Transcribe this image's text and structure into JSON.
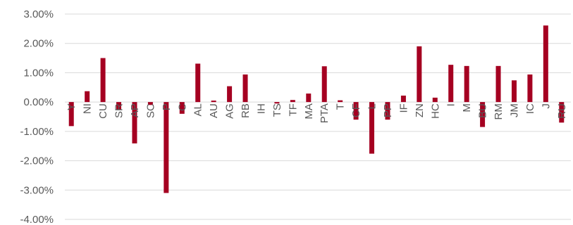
{
  "chart_data": {
    "type": "bar",
    "categories": [
      "Y",
      "NI",
      "CU",
      "SR",
      "AP",
      "SC",
      "P",
      "C",
      "AL",
      "AU",
      "AG",
      "RB",
      "IH",
      "TS",
      "TF",
      "MA",
      "PTA",
      "T",
      "CF",
      "L",
      "PP",
      "IF",
      "ZN",
      "HC",
      "I",
      "M",
      "BU",
      "RM",
      "JM",
      "IC",
      "J",
      "RU"
    ],
    "values": [
      -0.0082,
      0.0037,
      0.015,
      -0.0025,
      -0.0141,
      -0.001,
      -0.031,
      -0.004,
      0.0131,
      0.0005,
      0.0054,
      0.0094,
      0.0,
      -0.0005,
      0.0007,
      0.0029,
      0.0122,
      0.0006,
      -0.006,
      -0.0176,
      -0.006,
      0.0022,
      0.019,
      0.0015,
      0.0127,
      0.0123,
      -0.0085,
      0.0123,
      0.0074,
      0.0094,
      0.0261,
      -0.007
    ],
    "ylim": [
      -0.04,
      0.03
    ],
    "yticks": [
      "3.00%",
      "2.00%",
      "1.00%",
      "0.00%",
      "-1.00%",
      "-2.00%",
      "-3.00%",
      "-4.00%"
    ],
    "ytick_values": [
      0.03,
      0.02,
      0.01,
      0.0,
      -0.01,
      -0.02,
      -0.03,
      -0.04
    ],
    "grid": true,
    "bar_color": "#A50021",
    "grid_color": "#D9D9D9",
    "title": "",
    "xlabel": "",
    "ylabel": ""
  }
}
